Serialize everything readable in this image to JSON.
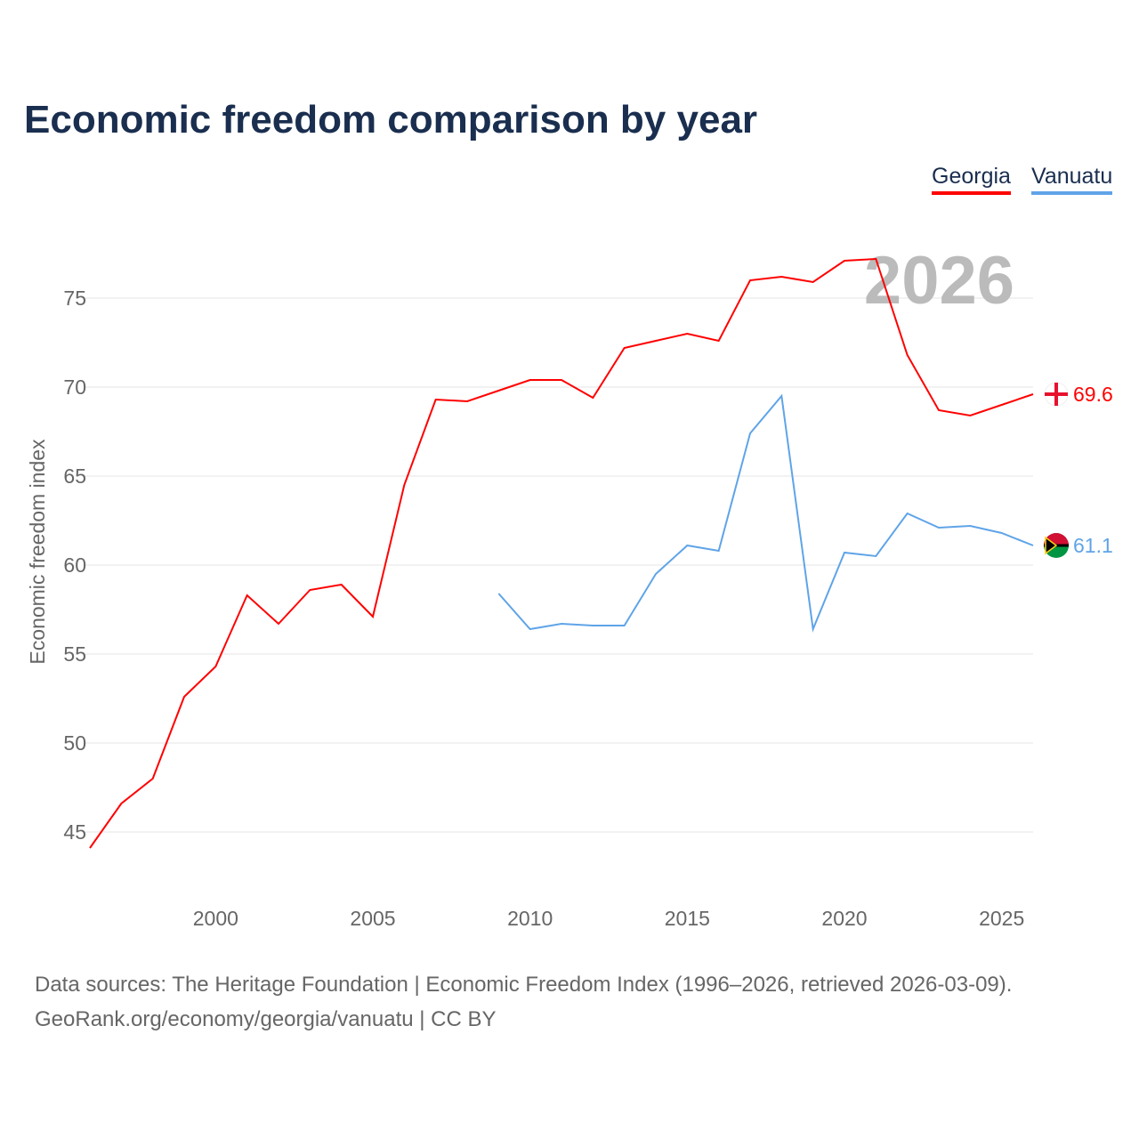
{
  "title": "Economic freedom comparison by year",
  "legend": {
    "georgia": "Georgia",
    "vanuatu": "Vanuatu"
  },
  "year_label": "2026",
  "footer": {
    "line1": "Data sources: The Heritage Foundation | Economic Freedom Index (1996–2026, retrieved 2026-03-09).",
    "line2": "GeoRank.org/economy/georgia/vanuatu | CC BY"
  },
  "chart_data": {
    "type": "line",
    "title": "Economic freedom comparison by year",
    "xlabel": "",
    "ylabel": "Economic freedom index",
    "xlim": [
      1996,
      2026
    ],
    "ylim": [
      41.5,
      78.5
    ],
    "yticks": [
      45,
      50,
      55,
      60,
      65,
      70,
      75
    ],
    "xticks": [
      2000,
      2005,
      2010,
      2015,
      2020,
      2025
    ],
    "grid": true,
    "legend_position": "top-right",
    "series": [
      {
        "name": "Georgia",
        "color": "#ff0000",
        "end_label": "69.6",
        "x": [
          1996,
          1997,
          1998,
          1999,
          2000,
          2001,
          2002,
          2003,
          2004,
          2005,
          2006,
          2007,
          2008,
          2009,
          2010,
          2011,
          2012,
          2013,
          2014,
          2015,
          2016,
          2017,
          2018,
          2019,
          2020,
          2021,
          2022,
          2023,
          2024,
          2025,
          2026
        ],
        "y": [
          44.1,
          46.6,
          48.0,
          52.6,
          54.3,
          58.3,
          56.7,
          58.6,
          58.9,
          57.1,
          64.5,
          69.3,
          69.2,
          69.8,
          70.4,
          70.4,
          69.4,
          72.2,
          72.6,
          73.0,
          72.6,
          76.0,
          76.2,
          75.9,
          77.1,
          77.2,
          71.8,
          68.7,
          68.4,
          69.0,
          69.6
        ]
      },
      {
        "name": "Vanuatu",
        "color": "#5fa4e8",
        "end_label": "61.1",
        "x": [
          2009,
          2010,
          2011,
          2012,
          2013,
          2014,
          2015,
          2016,
          2017,
          2018,
          2019,
          2020,
          2021,
          2022,
          2023,
          2024,
          2025,
          2026
        ],
        "y": [
          58.4,
          56.4,
          56.7,
          56.6,
          56.6,
          59.5,
          61.1,
          60.8,
          67.4,
          69.5,
          56.4,
          60.7,
          60.5,
          62.9,
          62.1,
          62.2,
          61.8,
          61.1
        ]
      }
    ]
  }
}
